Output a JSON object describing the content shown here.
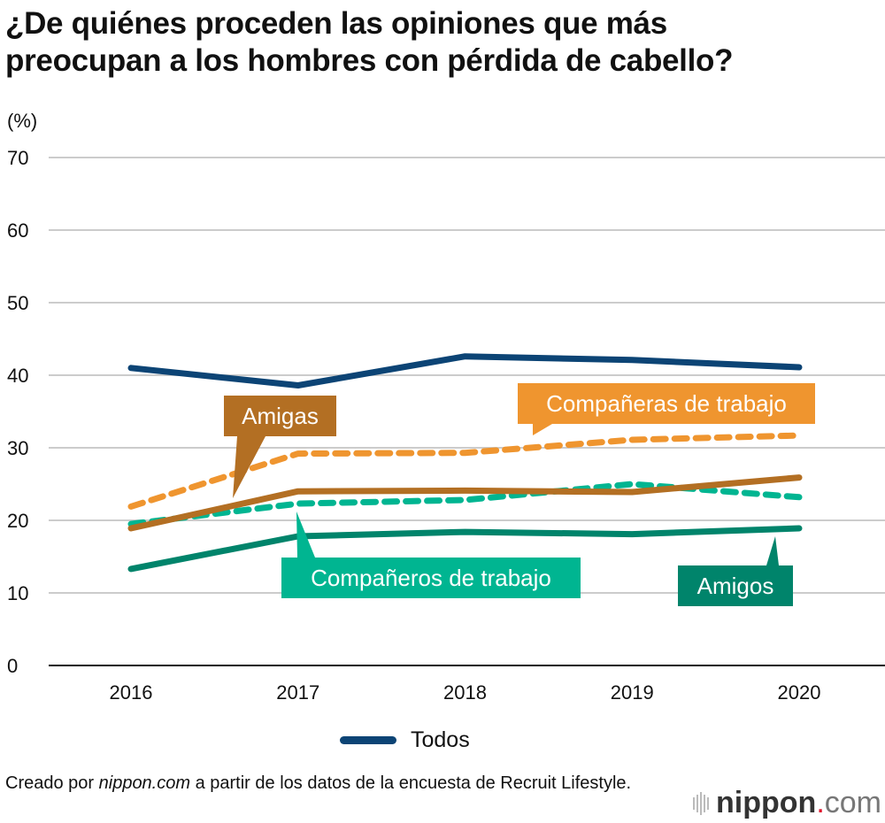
{
  "title_lines": [
    "¿De quiénes proceden las opiniones que más",
    "preocupan a los hombres con pérdida de cabello?"
  ],
  "unit_label": "(%)",
  "legend": {
    "label": "Todos"
  },
  "source": {
    "prefix": "Creado por ",
    "site": "nippon.com",
    "suffix": " a partir de los datos de la encuesta de Recruit Lifestyle."
  },
  "logo": {
    "name": "nippon",
    "dot": ".",
    "tld": "com"
  },
  "chart_data": {
    "type": "line",
    "title": "¿De quiénes proceden las opiniones que más preocupan a los hombres con pérdida de cabello?",
    "xlabel": "",
    "ylabel": "(%)",
    "x": [
      "2016",
      "2017",
      "2018",
      "2019",
      "2020"
    ],
    "ylim": [
      0,
      70
    ],
    "yticks": [
      0,
      10,
      20,
      30,
      40,
      50,
      60,
      70
    ],
    "grid": true,
    "legend_position": "bottom",
    "series": [
      {
        "name": "Todos",
        "color": "#0c4475",
        "style": "solid",
        "values": [
          41.0,
          38.6,
          42.6,
          42.1,
          41.1
        ]
      },
      {
        "name": "Compañeras de trabajo",
        "color": "#ef952f",
        "style": "dashed",
        "values": [
          21.9,
          29.2,
          29.3,
          31.1,
          31.7
        ]
      },
      {
        "name": "Amigas",
        "color": "#b36f23",
        "style": "solid",
        "values": [
          18.9,
          24.0,
          24.1,
          23.9,
          25.9
        ]
      },
      {
        "name": "Compañeros de trabajo",
        "color": "#00b591",
        "style": "dashed",
        "values": [
          19.5,
          22.3,
          22.8,
          25.0,
          23.2
        ]
      },
      {
        "name": "Amigos",
        "color": "#00846b",
        "style": "solid",
        "values": [
          13.3,
          17.8,
          18.4,
          18.1,
          18.9
        ]
      }
    ],
    "annotations": [
      {
        "text": "Amigas",
        "series": "Amigas",
        "color": "#b36f23"
      },
      {
        "text": "Compañeras de trabajo",
        "series": "Compañeras de trabajo",
        "color": "#ef952f"
      },
      {
        "text": "Compañeros de trabajo",
        "series": "Compañeros de trabajo",
        "color": "#00b591"
      },
      {
        "text": "Amigos",
        "series": "Amigos",
        "color": "#00846b"
      }
    ]
  }
}
